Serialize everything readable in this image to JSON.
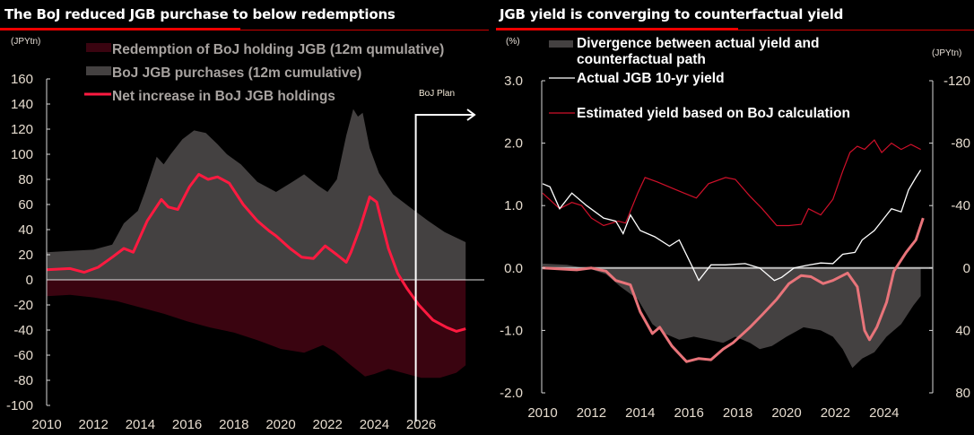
{
  "colors": {
    "background": "#000000",
    "redemption": "#3a0410",
    "purchases": "#444141",
    "net_line": "#ff1a40",
    "divergence": "#444141",
    "actual_yield": "#ffffff",
    "estimated_yield": "#d0102a",
    "counterfactual": "#e8747a",
    "title_rule": "#e00000",
    "axis": "#d9d9d9"
  },
  "chart_data": [
    {
      "type": "area",
      "title": "The BoJ reduced JGB purchase to below redemptions",
      "ylabel": "(JPYtn)",
      "xlabel": "",
      "ylim": [
        -100,
        160
      ],
      "xlim": [
        2010,
        2028
      ],
      "yticks": [
        "160",
        "140",
        "120",
        "100",
        "80",
        "60",
        "40",
        "20",
        "0",
        "-20",
        "-40",
        "-60",
        "-80",
        "-100"
      ],
      "ytick_values": [
        160,
        140,
        120,
        100,
        80,
        60,
        40,
        20,
        0,
        -20,
        -40,
        -60,
        -80,
        -100
      ],
      "xticks": [
        "2010",
        "2012",
        "2014",
        "2016",
        "2018",
        "2020",
        "2022",
        "2024",
        "2026"
      ],
      "xtick_values": [
        2010,
        2012,
        2014,
        2016,
        2018,
        2020,
        2022,
        2024,
        2026
      ],
      "grid": false,
      "legend_position": "top",
      "annotations": [
        {
          "text": "BoJ Plan",
          "x": 2025.77
        }
      ],
      "series": [
        {
          "name": "Redemption of BoJ holding JGB  (12m qumulative)",
          "kind": "area",
          "color_key": "redemption",
          "points": [
            [
              2010,
              -13
            ],
            [
              2011,
              -12
            ],
            [
              2012,
              -14
            ],
            [
              2013,
              -17
            ],
            [
              2014,
              -22
            ],
            [
              2015,
              -27
            ],
            [
              2016,
              -33
            ],
            [
              2017,
              -38
            ],
            [
              2018,
              -42
            ],
            [
              2019,
              -48
            ],
            [
              2020,
              -55
            ],
            [
              2021,
              -58
            ],
            [
              2021.8,
              -52
            ],
            [
              2022.3,
              -57
            ],
            [
              2023.0,
              -68
            ],
            [
              2023.6,
              -77
            ],
            [
              2024.0,
              -75
            ],
            [
              2024.6,
              -71
            ],
            [
              2025.2,
              -74
            ],
            [
              2026.0,
              -78
            ],
            [
              2026.8,
              -78
            ],
            [
              2027.5,
              -74
            ],
            [
              2027.9,
              -68
            ]
          ]
        },
        {
          "name": "BoJ JGB purchases (12m cumulative)",
          "kind": "area",
          "color_key": "purchases",
          "points": [
            [
              2010,
              22
            ],
            [
              2011,
              23
            ],
            [
              2012,
              24
            ],
            [
              2012.8,
              28
            ],
            [
              2013.3,
              45
            ],
            [
              2013.9,
              55
            ],
            [
              2014.2,
              70
            ],
            [
              2014.7,
              98
            ],
            [
              2015.0,
              92
            ],
            [
              2015.3,
              100
            ],
            [
              2015.8,
              112
            ],
            [
              2016.3,
              119
            ],
            [
              2016.8,
              117
            ],
            [
              2017.3,
              108
            ],
            [
              2017.7,
              100
            ],
            [
              2018.3,
              92
            ],
            [
              2019.0,
              78
            ],
            [
              2019.8,
              70
            ],
            [
              2020.5,
              78
            ],
            [
              2021.0,
              84
            ],
            [
              2021.6,
              75
            ],
            [
              2022.0,
              70
            ],
            [
              2022.4,
              80
            ],
            [
              2022.8,
              115
            ],
            [
              2023.1,
              136
            ],
            [
              2023.3,
              130
            ],
            [
              2023.5,
              133
            ],
            [
              2023.8,
              105
            ],
            [
              2024.2,
              85
            ],
            [
              2024.8,
              68
            ],
            [
              2025.5,
              58
            ],
            [
              2026.3,
              47
            ],
            [
              2027.0,
              38
            ],
            [
              2027.9,
              30
            ]
          ]
        },
        {
          "name": "Net increase in BoJ JGB holdings",
          "kind": "line",
          "color_key": "net_line",
          "points": [
            [
              2010,
              8
            ],
            [
              2011,
              9
            ],
            [
              2011.6,
              6
            ],
            [
              2012.2,
              10
            ],
            [
              2012.8,
              18
            ],
            [
              2013.3,
              25
            ],
            [
              2013.7,
              22
            ],
            [
              2014.3,
              47
            ],
            [
              2014.9,
              64
            ],
            [
              2015.2,
              58
            ],
            [
              2015.6,
              56
            ],
            [
              2016.1,
              74
            ],
            [
              2016.5,
              84
            ],
            [
              2016.9,
              80
            ],
            [
              2017.3,
              82
            ],
            [
              2017.8,
              77
            ],
            [
              2018.4,
              60
            ],
            [
              2019.0,
              47
            ],
            [
              2019.5,
              39
            ],
            [
              2019.8,
              35
            ],
            [
              2020.4,
              25
            ],
            [
              2020.9,
              18
            ],
            [
              2021.4,
              17
            ],
            [
              2021.9,
              27
            ],
            [
              2022.4,
              20
            ],
            [
              2022.8,
              14
            ],
            [
              2023.0,
              22
            ],
            [
              2023.4,
              42
            ],
            [
              2023.8,
              66
            ],
            [
              2024.1,
              62
            ],
            [
              2024.3,
              47
            ],
            [
              2024.6,
              25
            ],
            [
              2025.0,
              5
            ],
            [
              2025.4,
              -7
            ],
            [
              2025.9,
              -20
            ],
            [
              2026.5,
              -32
            ],
            [
              2027.1,
              -38
            ],
            [
              2027.5,
              -41
            ],
            [
              2027.9,
              -39
            ]
          ]
        }
      ]
    },
    {
      "type": "line",
      "title": "JGB yield is converging to counterfactual yield",
      "ylabel": "(%)",
      "y2label": "(JPYtn)",
      "xlabel": "",
      "ylim": [
        -2.0,
        3.0
      ],
      "y2lim": [
        80,
        -120
      ],
      "xlim": [
        2010,
        2025.8
      ],
      "yticks": [
        "3.0",
        "2.0",
        "1.0",
        "0.0",
        "-1.0",
        "-2.0"
      ],
      "ytick_values": [
        3,
        2,
        1,
        0,
        -1,
        -2
      ],
      "y2ticks": [
        "-120",
        "-80",
        "-40",
        "0",
        "40",
        "80"
      ],
      "y2tick_values": [
        -120,
        -80,
        -40,
        0,
        40,
        80
      ],
      "xticks": [
        "2010",
        "2012",
        "2014",
        "2016",
        "2018",
        "2020",
        "2022",
        "2024"
      ],
      "xtick_values": [
        2010,
        2012,
        2014,
        2016,
        2018,
        2020,
        2022,
        2024
      ],
      "grid": false,
      "legend_position": "top-left",
      "series": [
        {
          "name": "Divergence between actual yield and counterfactual path",
          "name_lines": [
            "Divergence between actual yield and",
            "counterfactual path"
          ],
          "kind": "area",
          "color_key": "divergence",
          "points": [
            [
              2010,
              0.07
            ],
            [
              2011,
              0.05
            ],
            [
              2012,
              -0.02
            ],
            [
              2012.6,
              -0.1
            ],
            [
              2013.2,
              -0.3
            ],
            [
              2013.9,
              -0.5
            ],
            [
              2014.5,
              -0.9
            ],
            [
              2015.0,
              -1.05
            ],
            [
              2015.6,
              -1.15
            ],
            [
              2016.2,
              -1.1
            ],
            [
              2016.8,
              -1.15
            ],
            [
              2017.4,
              -1.2
            ],
            [
              2017.9,
              -1.1
            ],
            [
              2018.5,
              -1.2
            ],
            [
              2018.9,
              -1.3
            ],
            [
              2019.4,
              -1.25
            ],
            [
              2020.0,
              -1.1
            ],
            [
              2020.7,
              -0.95
            ],
            [
              2021.4,
              -1.0
            ],
            [
              2021.9,
              -1.1
            ],
            [
              2022.3,
              -1.3
            ],
            [
              2022.7,
              -1.6
            ],
            [
              2023.1,
              -1.45
            ],
            [
              2023.6,
              -1.35
            ],
            [
              2024.1,
              -1.1
            ],
            [
              2024.7,
              -0.9
            ],
            [
              2025.2,
              -0.6
            ],
            [
              2025.5,
              -0.45
            ]
          ]
        },
        {
          "name": "Actual JGB 10-yr yield",
          "kind": "line",
          "color_key": "actual_yield",
          "points": [
            [
              2010,
              1.35
            ],
            [
              2010.3,
              1.3
            ],
            [
              2010.7,
              0.95
            ],
            [
              2011.2,
              1.2
            ],
            [
              2011.8,
              1.0
            ],
            [
              2012.5,
              0.8
            ],
            [
              2013.0,
              0.75
            ],
            [
              2013.3,
              0.55
            ],
            [
              2013.6,
              0.85
            ],
            [
              2014.0,
              0.6
            ],
            [
              2014.6,
              0.5
            ],
            [
              2015.2,
              0.35
            ],
            [
              2015.6,
              0.45
            ],
            [
              2016.1,
              0.05
            ],
            [
              2016.4,
              -0.2
            ],
            [
              2016.9,
              0.05
            ],
            [
              2017.5,
              0.05
            ],
            [
              2018.3,
              0.07
            ],
            [
              2018.9,
              0.0
            ],
            [
              2019.5,
              -0.2
            ],
            [
              2019.8,
              -0.15
            ],
            [
              2020.3,
              0.0
            ],
            [
              2020.8,
              0.04
            ],
            [
              2021.4,
              0.08
            ],
            [
              2021.9,
              0.07
            ],
            [
              2022.3,
              0.22
            ],
            [
              2022.8,
              0.25
            ],
            [
              2023.1,
              0.45
            ],
            [
              2023.6,
              0.6
            ],
            [
              2023.9,
              0.75
            ],
            [
              2024.3,
              0.95
            ],
            [
              2024.7,
              0.9
            ],
            [
              2025.0,
              1.25
            ],
            [
              2025.3,
              1.45
            ],
            [
              2025.5,
              1.57
            ]
          ]
        },
        {
          "name": "Estimated yield based on BoJ calculation",
          "kind": "line",
          "color_key": "estimated_yield",
          "points": [
            [
              2010,
              1.2
            ],
            [
              2010.7,
              0.95
            ],
            [
              2011.2,
              1.05
            ],
            [
              2011.6,
              1.0
            ],
            [
              2012.0,
              0.8
            ],
            [
              2012.5,
              0.68
            ],
            [
              2013.1,
              0.75
            ],
            [
              2013.4,
              0.72
            ],
            [
              2013.9,
              1.2
            ],
            [
              2014.2,
              1.45
            ],
            [
              2014.7,
              1.38
            ],
            [
              2015.3,
              1.28
            ],
            [
              2015.8,
              1.2
            ],
            [
              2016.3,
              1.12
            ],
            [
              2016.8,
              1.35
            ],
            [
              2017.5,
              1.45
            ],
            [
              2017.9,
              1.42
            ],
            [
              2018.5,
              1.15
            ],
            [
              2019.0,
              0.95
            ],
            [
              2019.6,
              0.68
            ],
            [
              2020.1,
              0.68
            ],
            [
              2020.6,
              0.7
            ],
            [
              2020.9,
              0.95
            ],
            [
              2021.4,
              0.85
            ],
            [
              2021.9,
              1.1
            ],
            [
              2022.3,
              1.55
            ],
            [
              2022.6,
              1.85
            ],
            [
              2022.9,
              1.95
            ],
            [
              2023.2,
              1.9
            ],
            [
              2023.6,
              2.05
            ],
            [
              2023.9,
              1.85
            ],
            [
              2024.3,
              2.0
            ],
            [
              2024.7,
              1.9
            ],
            [
              2025.1,
              1.98
            ],
            [
              2025.5,
              1.9
            ]
          ]
        },
        {
          "name": "Counterfactual path (right axis, unlabeled in legend)",
          "kind": "line",
          "color_key": "counterfactual",
          "legend": false,
          "points": [
            [
              2010,
              0.0
            ],
            [
              2011.4,
              -0.03
            ],
            [
              2012.0,
              0.0
            ],
            [
              2012.6,
              -0.05
            ],
            [
              2013.0,
              -0.2
            ],
            [
              2013.6,
              -0.27
            ],
            [
              2014.0,
              -0.7
            ],
            [
              2014.5,
              -1.05
            ],
            [
              2014.8,
              -0.95
            ],
            [
              2015.3,
              -1.25
            ],
            [
              2015.9,
              -1.5
            ],
            [
              2016.4,
              -1.45
            ],
            [
              2016.9,
              -1.47
            ],
            [
              2017.4,
              -1.3
            ],
            [
              2017.8,
              -1.2
            ],
            [
              2018.5,
              -0.95
            ],
            [
              2019.0,
              -0.75
            ],
            [
              2019.6,
              -0.5
            ],
            [
              2020.1,
              -0.25
            ],
            [
              2020.6,
              -0.12
            ],
            [
              2021.0,
              -0.14
            ],
            [
              2021.5,
              -0.25
            ],
            [
              2021.9,
              -0.2
            ],
            [
              2022.5,
              -0.08
            ],
            [
              2022.9,
              -0.3
            ],
            [
              2023.2,
              -1.0
            ],
            [
              2023.4,
              -1.15
            ],
            [
              2023.7,
              -0.95
            ],
            [
              2024.1,
              -0.55
            ],
            [
              2024.4,
              -0.05
            ],
            [
              2024.9,
              0.25
            ],
            [
              2025.3,
              0.45
            ],
            [
              2025.6,
              0.8
            ]
          ]
        }
      ]
    }
  ]
}
